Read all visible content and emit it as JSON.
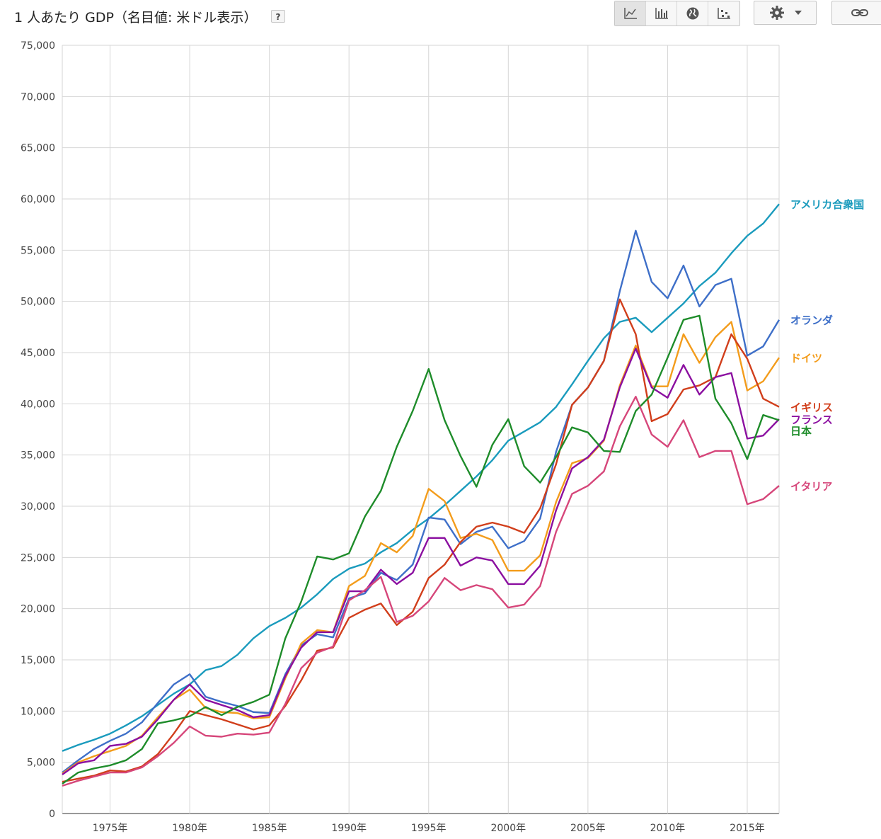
{
  "header": {
    "title": "1 人あたり GDP（名目値: 米ドル表示）",
    "help_label": "?"
  },
  "toolbar": {
    "buttons": [
      {
        "icon": "line-chart-icon",
        "active": true
      },
      {
        "icon": "bar-chart-icon",
        "active": false
      },
      {
        "icon": "globe-map-icon",
        "active": false
      },
      {
        "icon": "scatter-plot-icon",
        "active": false
      }
    ],
    "settings_icon": "gear-icon",
    "dropdown_icon": "caret-down-icon",
    "link_icon": "link-icon"
  },
  "chart_data": {
    "type": "line",
    "title": "1 人あたり GDP（名目値: 米ドル表示）",
    "ylim": [
      0,
      75000
    ],
    "y_ticks": [
      0,
      5000,
      10000,
      15000,
      20000,
      25000,
      30000,
      35000,
      40000,
      45000,
      50000,
      55000,
      60000,
      65000,
      70000,
      75000
    ],
    "y_tick_labels": [
      "0",
      "5,000",
      "10,000",
      "15,000",
      "20,000",
      "25,000",
      "30,000",
      "35,000",
      "40,000",
      "45,000",
      "50,000",
      "55,000",
      "60,000",
      "65,000",
      "70,000",
      "75,000"
    ],
    "xlim": [
      1972,
      2017
    ],
    "x_ticks": [
      1975,
      1980,
      1985,
      1990,
      1995,
      2000,
      2005,
      2010,
      2015
    ],
    "x_tick_labels": [
      "1975年",
      "1980年",
      "1985年",
      "1990年",
      "1995年",
      "2000年",
      "2005年",
      "2010年",
      "2015年"
    ],
    "grid": true,
    "legend": "right, labels at line ends",
    "x": [
      1972,
      1973,
      1974,
      1975,
      1976,
      1977,
      1978,
      1979,
      1980,
      1981,
      1982,
      1983,
      1984,
      1985,
      1986,
      1987,
      1988,
      1989,
      1990,
      1991,
      1992,
      1993,
      1994,
      1995,
      1996,
      1997,
      1998,
      1999,
      2000,
      2001,
      2002,
      2003,
      2004,
      2005,
      2006,
      2007,
      2008,
      2009,
      2010,
      2011,
      2012,
      2013,
      2014,
      2015,
      2016,
      2017
    ],
    "series": [
      {
        "name": "アメリカ合衆国",
        "color": "#1a9bbd",
        "values": [
          6100,
          6700,
          7200,
          7800,
          8600,
          9500,
          10600,
          11700,
          12600,
          14000,
          14400,
          15500,
          17100,
          18300,
          19100,
          20100,
          21400,
          22900,
          23900,
          24400,
          25500,
          26400,
          27700,
          28800,
          30100,
          31500,
          32900,
          34500,
          36400,
          37300,
          38200,
          39700,
          41900,
          44200,
          46400,
          48000,
          48400,
          47000,
          48400,
          49800,
          51500,
          52800,
          54700,
          56400,
          57600,
          59500
        ]
      },
      {
        "name": "オランダ",
        "color": "#3e6fc8",
        "values": [
          4000,
          5200,
          6300,
          7100,
          7800,
          8900,
          10800,
          12600,
          13600,
          11400,
          10900,
          10500,
          9900,
          9800,
          13600,
          16400,
          17500,
          17200,
          21000,
          21500,
          23500,
          22800,
          24300,
          28900,
          28700,
          26300,
          27500,
          28000,
          25900,
          26600,
          28800,
          35300,
          39900,
          41600,
          44200,
          51000,
          56900,
          51900,
          50300,
          53500,
          49500,
          51600,
          52200,
          44700,
          45600,
          48200
        ]
      },
      {
        "name": "ドイツ",
        "color": "#f39c1b",
        "values": [
          3900,
          5000,
          5600,
          6100,
          6600,
          7600,
          9400,
          11100,
          12100,
          10300,
          9900,
          9800,
          9300,
          9400,
          13200,
          16600,
          17900,
          17700,
          22200,
          23200,
          26400,
          25500,
          27100,
          31700,
          30500,
          26900,
          27300,
          26700,
          23700,
          23700,
          25200,
          30400,
          34200,
          34700,
          36400,
          41800,
          45700,
          41700,
          41700,
          46800,
          44000,
          46500,
          48000,
          41300,
          42200,
          44500
        ]
      },
      {
        "name": "イギリス",
        "color": "#d13e1b",
        "values": [
          3100,
          3400,
          3700,
          4200,
          4100,
          4600,
          5800,
          7800,
          10000,
          9600,
          9200,
          8700,
          8200,
          8600,
          10500,
          13000,
          15900,
          16200,
          19100,
          19900,
          20500,
          18400,
          19700,
          23000,
          24300,
          26500,
          28000,
          28400,
          28000,
          27400,
          29800,
          34100,
          39900,
          41600,
          44200,
          50200,
          46800,
          38300,
          39000,
          41400,
          41800,
          42600,
          46800,
          44400,
          40500,
          39700
        ]
      },
      {
        "name": "フランス",
        "color": "#8b0fa0",
        "values": [
          3800,
          4900,
          5200,
          6600,
          6800,
          7500,
          9200,
          11100,
          12600,
          11100,
          10600,
          10100,
          9400,
          9600,
          13400,
          16200,
          17700,
          17700,
          21700,
          21700,
          23800,
          22400,
          23500,
          26900,
          26900,
          24200,
          25000,
          24700,
          22400,
          22400,
          24200,
          29600,
          33700,
          34800,
          36500,
          41600,
          45400,
          41600,
          40600,
          43800,
          40900,
          42600,
          43000,
          36600,
          36900,
          38500
        ]
      },
      {
        "name": "日本",
        "color": "#1e8c2a",
        "values": [
          2900,
          4000,
          4400,
          4700,
          5200,
          6300,
          8800,
          9100,
          9500,
          10400,
          9600,
          10400,
          10900,
          11600,
          17100,
          20700,
          25100,
          24800,
          25400,
          29000,
          31500,
          35800,
          39300,
          43400,
          38400,
          34900,
          31900,
          36000,
          38500,
          33900,
          32300,
          34800,
          37700,
          37200,
          35400,
          35300,
          39300,
          40900,
          44500,
          48200,
          48600,
          40500,
          38100,
          34600,
          38900,
          38400
        ]
      },
      {
        "name": "イタリア",
        "color": "#d6467a",
        "values": [
          2700,
          3200,
          3600,
          4000,
          4000,
          4500,
          5600,
          6900,
          8500,
          7600,
          7500,
          7800,
          7700,
          7900,
          10700,
          14200,
          15700,
          16300,
          20800,
          21800,
          23100,
          18700,
          19300,
          20700,
          23000,
          21800,
          22300,
          21900,
          20100,
          20400,
          22200,
          27500,
          31200,
          32000,
          33400,
          37800,
          40700,
          37000,
          35800,
          38400,
          34800,
          35400,
          35400,
          30200,
          30700,
          32000
        ]
      }
    ]
  }
}
